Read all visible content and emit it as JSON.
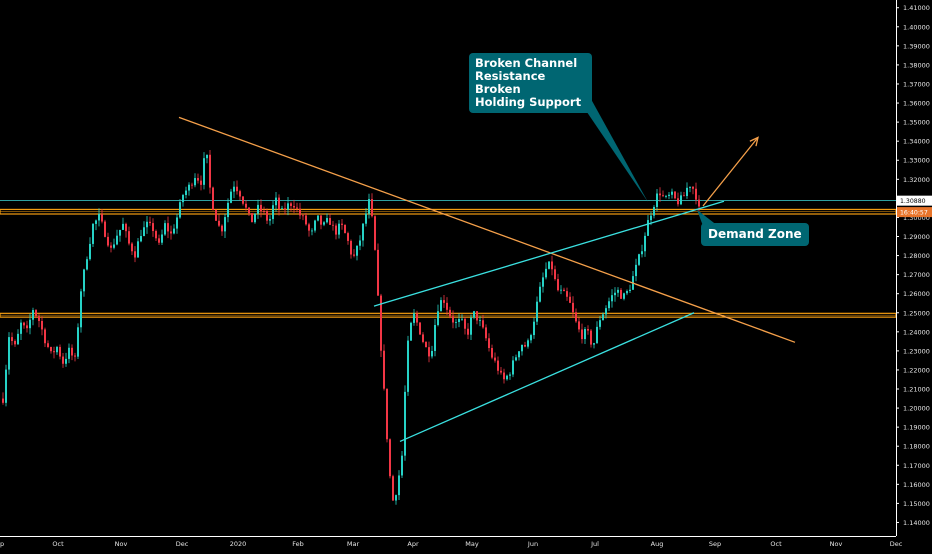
{
  "chart_data": {
    "type": "candlestick",
    "x_tick_labels": [
      "p",
      "Oct",
      "Nov",
      "Dec",
      "2020",
      "Feb",
      "Mar",
      "Apr",
      "May",
      "Jun",
      "Jul",
      "Aug",
      "Sep",
      "Oct",
      "Nov",
      "Dec"
    ],
    "y_tick_labels": [
      "1.41000",
      "1.40000",
      "1.39000",
      "1.38000",
      "1.37000",
      "1.36000",
      "1.35000",
      "1.34000",
      "1.33000",
      "1.32000",
      "1.31000",
      "1.30000",
      "1.29000",
      "1.28000",
      "1.27000",
      "1.26000",
      "1.25000",
      "1.24000",
      "1.23000",
      "1.22000",
      "1.21000",
      "1.20000",
      "1.19000",
      "1.18000",
      "1.17000",
      "1.16000",
      "1.15000",
      "1.14000"
    ],
    "ylim": [
      1.135,
      1.413
    ],
    "price_tags": [
      {
        "value": 1.3088,
        "label": "1.30880",
        "color": "#ffffff"
      },
      {
        "value": 1.3028,
        "label": "16:40:57",
        "color": "#e8742a"
      }
    ],
    "horizontal_zones": [
      {
        "name": "resistance-zone",
        "low": 1.3018,
        "high": 1.3042,
        "color": "#f39c12"
      },
      {
        "name": "support-zone",
        "low": 1.2477,
        "high": 1.2497,
        "color": "#f39c12"
      }
    ],
    "price_line": {
      "value": 1.3088,
      "color": "#3fd6d6"
    },
    "trendlines": [
      {
        "name": "descending-trendline",
        "color": "#f5a04a",
        "points": [
          [
            179,
            1.3525
          ],
          [
            795,
            1.2345
          ]
        ]
      },
      {
        "name": "channel-upper",
        "color": "#3ae0e0",
        "points": [
          [
            374,
            1.2535
          ],
          [
            724,
            1.3085
          ]
        ]
      },
      {
        "name": "channel-lower",
        "color": "#3ae0e0",
        "points": [
          [
            400,
            1.1825
          ],
          [
            694,
            1.25
          ]
        ]
      },
      {
        "name": "projection-arrow",
        "color": "#f5a04a",
        "points": [
          [
            703,
            1.306
          ],
          [
            758,
            1.342
          ]
        ],
        "arrow": true
      }
    ],
    "annotations": [
      {
        "name": "callout-1",
        "text": "Broken Channel\nResistance Broken\nHolding Support",
        "anchor": [
          648,
          1.308
        ]
      },
      {
        "name": "callout-2",
        "text": "Demand Zone",
        "anchor": [
          697,
          1.304
        ]
      }
    ],
    "price_path": [
      [
        2,
        1.205
      ],
      [
        8,
        1.238
      ],
      [
        14,
        1.232
      ],
      [
        20,
        1.244
      ],
      [
        26,
        1.24
      ],
      [
        32,
        1.252
      ],
      [
        38,
        1.246
      ],
      [
        44,
        1.236
      ],
      [
        50,
        1.228
      ],
      [
        56,
        1.232
      ],
      [
        62,
        1.224
      ],
      [
        68,
        1.23
      ],
      [
        74,
        1.225
      ],
      [
        80,
        1.262
      ],
      [
        86,
        1.28
      ],
      [
        92,
        1.296
      ],
      [
        98,
        1.3
      ],
      [
        104,
        1.292
      ],
      [
        110,
        1.283
      ],
      [
        116,
        1.291
      ],
      [
        122,
        1.296
      ],
      [
        128,
        1.286
      ],
      [
        134,
        1.281
      ],
      [
        140,
        1.292
      ],
      [
        146,
        1.296
      ],
      [
        152,
        1.294
      ],
      [
        158,
        1.285
      ],
      [
        164,
        1.296
      ],
      [
        170,
        1.291
      ],
      [
        176,
        1.3
      ],
      [
        182,
        1.312
      ],
      [
        188,
        1.316
      ],
      [
        194,
        1.322
      ],
      [
        200,
        1.319
      ],
      [
        205,
        1.336
      ],
      [
        210,
        1.31
      ],
      [
        215,
        1.3
      ],
      [
        220,
        1.292
      ],
      [
        226,
        1.306
      ],
      [
        232,
        1.318
      ],
      [
        238,
        1.314
      ],
      [
        244,
        1.306
      ],
      [
        250,
        1.297
      ],
      [
        256,
        1.305
      ],
      [
        262,
        1.303
      ],
      [
        268,
        1.297
      ],
      [
        274,
        1.31
      ],
      [
        280,
        1.302
      ],
      [
        286,
        1.306
      ],
      [
        292,
        1.308
      ],
      [
        298,
        1.302
      ],
      [
        304,
        1.298
      ],
      [
        310,
        1.29
      ],
      [
        316,
        1.3
      ],
      [
        322,
        1.295
      ],
      [
        328,
        1.299
      ],
      [
        334,
        1.292
      ],
      [
        340,
        1.296
      ],
      [
        346,
        1.289
      ],
      [
        352,
        1.278
      ],
      [
        358,
        1.286
      ],
      [
        364,
        1.3
      ],
      [
        369,
        1.31
      ],
      [
        374,
        1.282
      ],
      [
        380,
        1.232
      ],
      [
        386,
        1.185
      ],
      [
        391,
        1.15
      ],
      [
        396,
        1.158
      ],
      [
        401,
        1.175
      ],
      [
        406,
        1.23
      ],
      [
        412,
        1.25
      ],
      [
        418,
        1.242
      ],
      [
        424,
        1.232
      ],
      [
        430,
        1.228
      ],
      [
        436,
        1.252
      ],
      [
        442,
        1.258
      ],
      [
        448,
        1.25
      ],
      [
        454,
        1.244
      ],
      [
        460,
        1.246
      ],
      [
        466,
        1.238
      ],
      [
        472,
        1.25
      ],
      [
        478,
        1.246
      ],
      [
        484,
        1.238
      ],
      [
        490,
        1.228
      ],
      [
        496,
        1.222
      ],
      [
        502,
        1.214
      ],
      [
        508,
        1.218
      ],
      [
        514,
        1.226
      ],
      [
        520,
        1.234
      ],
      [
        526,
        1.232
      ],
      [
        532,
        1.244
      ],
      [
        538,
        1.26
      ],
      [
        544,
        1.272
      ],
      [
        550,
        1.276
      ],
      [
        556,
        1.262
      ],
      [
        562,
        1.26
      ],
      [
        568,
        1.256
      ],
      [
        574,
        1.246
      ],
      [
        580,
        1.238
      ],
      [
        586,
        1.24
      ],
      [
        592,
        1.232
      ],
      [
        598,
        1.246
      ],
      [
        604,
        1.252
      ],
      [
        610,
        1.258
      ],
      [
        616,
        1.262
      ],
      [
        622,
        1.258
      ],
      [
        628,
        1.262
      ],
      [
        634,
        1.272
      ],
      [
        640,
        1.282
      ],
      [
        646,
        1.296
      ],
      [
        652,
        1.306
      ],
      [
        658,
        1.314
      ],
      [
        664,
        1.309
      ],
      [
        670,
        1.312
      ],
      [
        676,
        1.308
      ],
      [
        682,
        1.31
      ],
      [
        688,
        1.318
      ],
      [
        694,
        1.314
      ],
      [
        698,
        1.304
      ]
    ]
  }
}
